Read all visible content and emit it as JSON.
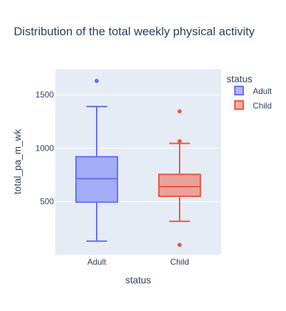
{
  "chart_data": {
    "type": "box",
    "title": "Distribution of the total weekly physical activity",
    "xlabel": "status",
    "ylabel": "total_pa_m_wk",
    "ylim": [
      0,
      1740
    ],
    "yticks": [
      500,
      1000,
      1500
    ],
    "legend": {
      "title": "status",
      "placement": "top-right",
      "entries": [
        "Adult",
        "Child"
      ]
    },
    "series": [
      {
        "name": "Adult",
        "color": "#636efa",
        "fill": "rgba(99,110,250,0.5)",
        "min": 130,
        "q1": 495,
        "median": 715,
        "q3": 920,
        "max": 1390,
        "outliers": [
          1630
        ]
      },
      {
        "name": "Child",
        "color": "#ef553b",
        "fill": "rgba(239,85,59,0.5)",
        "min": 315,
        "q1": 550,
        "median": 640,
        "q3": 755,
        "max": 1045,
        "outliers": [
          95,
          1065,
          1345
        ]
      }
    ]
  }
}
